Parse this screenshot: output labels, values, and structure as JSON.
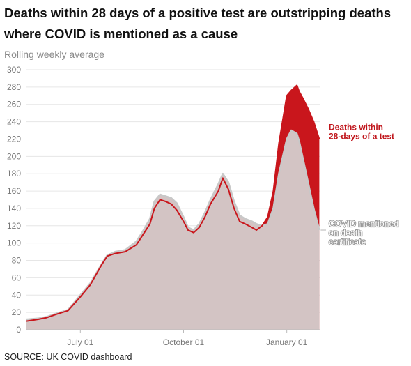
{
  "title": "Deaths within 28 days of a positive test are outstripping deaths where COVID is mentioned as a cause",
  "subtitle": "Rolling weekly average",
  "source": "SOURCE: UK COVID dashboard",
  "colors": {
    "deaths_28_days": "#c9161c",
    "covid_certificate": "#d3c4c4",
    "certificate_line": "#c8c8c8",
    "grid": "#e6e6e6"
  },
  "chart_data": {
    "type": "area",
    "ylim": [
      0,
      300
    ],
    "yticks": [
      "0",
      "20",
      "40",
      "60",
      "80",
      "100",
      "120",
      "140",
      "160",
      "180",
      "200",
      "220",
      "240",
      "260",
      "280",
      "300"
    ],
    "xticks": [
      {
        "label": "July 01",
        "x": "2020-07-01"
      },
      {
        "label": "October 01",
        "x": "2020-10-01"
      },
      {
        "label": "January 01",
        "x": "2021-01-01"
      }
    ],
    "xlim": [
      "2020-05-14",
      "2021-01-31"
    ],
    "grid": true,
    "legend": "inline-right",
    "series": [
      {
        "name": "Deaths within 28-days of a test",
        "label_lines": [
          "Deaths within",
          "28-days of a test"
        ],
        "x": [
          "2020-05-14",
          "2020-05-24",
          "2020-06-01",
          "2020-06-10",
          "2020-06-20",
          "2020-07-01",
          "2020-07-10",
          "2020-07-20",
          "2020-07-25",
          "2020-08-01",
          "2020-08-10",
          "2020-08-20",
          "2020-08-25",
          "2020-09-01",
          "2020-09-05",
          "2020-09-10",
          "2020-09-15",
          "2020-09-20",
          "2020-09-25",
          "2020-10-01",
          "2020-10-05",
          "2020-10-10",
          "2020-10-15",
          "2020-10-20",
          "2020-10-25",
          "2020-11-01",
          "2020-11-05",
          "2020-11-10",
          "2020-11-15",
          "2020-11-20",
          "2020-11-25",
          "2020-12-01",
          "2020-12-05",
          "2020-12-10",
          "2020-12-15",
          "2020-12-20",
          "2020-12-25",
          "2021-01-01",
          "2021-01-05",
          "2021-01-10",
          "2021-01-12",
          "2021-01-15",
          "2021-01-20",
          "2021-01-25",
          "2021-01-30"
        ],
        "values": [
          10,
          12,
          14,
          18,
          22,
          38,
          52,
          75,
          85,
          88,
          90,
          98,
          108,
          122,
          140,
          150,
          148,
          145,
          138,
          125,
          115,
          112,
          118,
          130,
          145,
          160,
          175,
          162,
          140,
          125,
          122,
          118,
          115,
          120,
          130,
          160,
          215,
          270,
          276,
          282,
          275,
          268,
          255,
          240,
          220
        ]
      },
      {
        "name": "COVID mentioned on death certificate",
        "label_lines": [
          "COVID mentioned",
          "on death",
          "certificate"
        ],
        "x": [
          "2020-05-14",
          "2020-05-24",
          "2020-06-01",
          "2020-06-10",
          "2020-06-20",
          "2020-07-01",
          "2020-07-10",
          "2020-07-20",
          "2020-07-25",
          "2020-08-01",
          "2020-08-10",
          "2020-08-20",
          "2020-08-25",
          "2020-09-01",
          "2020-09-05",
          "2020-09-10",
          "2020-09-15",
          "2020-09-20",
          "2020-09-25",
          "2020-10-01",
          "2020-10-05",
          "2020-10-10",
          "2020-10-15",
          "2020-10-20",
          "2020-10-25",
          "2020-11-01",
          "2020-11-05",
          "2020-11-10",
          "2020-11-15",
          "2020-11-20",
          "2020-11-25",
          "2020-12-01",
          "2020-12-05",
          "2020-12-10",
          "2020-12-15",
          "2020-12-20",
          "2020-12-25",
          "2021-01-01",
          "2021-01-05",
          "2021-01-10",
          "2021-01-12",
          "2021-01-15",
          "2021-01-20",
          "2021-01-25",
          "2021-01-30"
        ],
        "values": [
          12,
          13,
          15,
          19,
          23,
          40,
          54,
          76,
          86,
          90,
          92,
          102,
          112,
          128,
          148,
          156,
          154,
          152,
          146,
          130,
          118,
          115,
          122,
          135,
          150,
          168,
          180,
          170,
          148,
          132,
          128,
          125,
          122,
          120,
          122,
          140,
          180,
          220,
          230,
          226,
          218,
          200,
          170,
          140,
          115
        ]
      }
    ]
  }
}
